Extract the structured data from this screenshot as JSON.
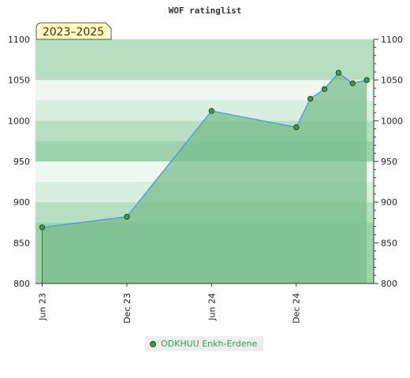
{
  "chart_data": {
    "type": "area",
    "title": "WOF ratinglist",
    "period_label": "2023–2025",
    "xlabel": "",
    "ylabel": "",
    "x_ticks": [
      "Jun 23",
      "Dec 23",
      "Jun 24",
      "Dec 24"
    ],
    "y_ticks": [
      800,
      850,
      900,
      950,
      1000,
      1050,
      1100
    ],
    "ylim": [
      800,
      1100
    ],
    "grid": true,
    "legend_position": "bottom-center",
    "series": [
      {
        "name": "ODKHUU Enkh-Erdene",
        "points": [
          {
            "x": "2023-06",
            "y": 869
          },
          {
            "x": "2023-12",
            "y": 882
          },
          {
            "x": "2024-06",
            "y": 1012
          },
          {
            "x": "2024-12",
            "y": 992
          },
          {
            "x": "2025-01",
            "y": 1027
          },
          {
            "x": "2025-02",
            "y": 1039
          },
          {
            "x": "2025-03",
            "y": 1059
          },
          {
            "x": "2025-04",
            "y": 1046
          },
          {
            "x": "2025-05",
            "y": 1050
          }
        ]
      }
    ],
    "colors": {
      "line": "#5b9bd5",
      "fill": "#78be8c",
      "marker": "#3a9a4a",
      "marker_stroke": "#1d4d23",
      "badge_bg": "#ffffc4",
      "badge_text": "#6a1a00",
      "legend_text": "#22aa44",
      "band_colors": [
        "#9dd3ac",
        "#9dd3ac",
        "#9dd3ac",
        "#b6dfc2",
        "#d8eedf",
        "#eef7f1",
        "#9dd3ac",
        "#b6dfc2",
        "#d8eedf",
        "#eef7f1",
        "#b6dfc2",
        "#b6dfc2"
      ]
    }
  }
}
